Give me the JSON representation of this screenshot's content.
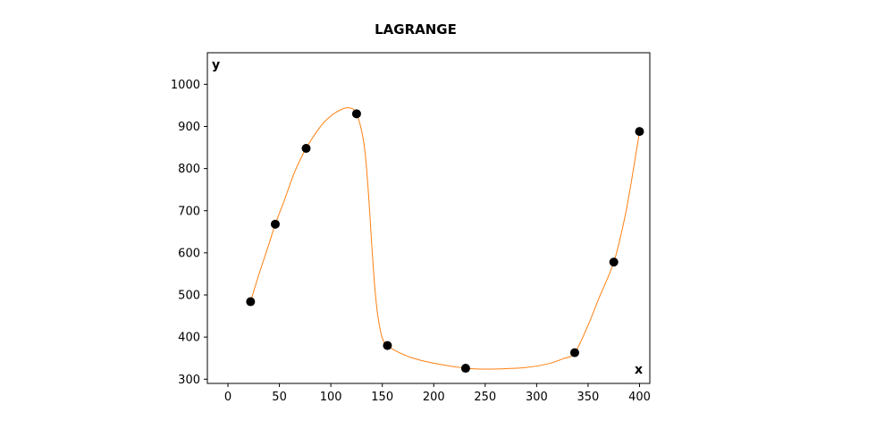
{
  "chart_data": {
    "type": "line",
    "title": "LAGRANGE",
    "xlabel": "x",
    "ylabel": "y",
    "xlim": [
      -20,
      410
    ],
    "ylim": [
      290,
      1075
    ],
    "xticks": [
      0,
      50,
      100,
      150,
      200,
      250,
      300,
      350,
      400
    ],
    "yticks": [
      300,
      400,
      500,
      600,
      700,
      800,
      900,
      1000
    ],
    "grid": false,
    "series": [
      {
        "style": "line",
        "color": "#ff7f0e",
        "x": [
          22,
          30,
          40,
          46,
          55,
          65,
          76,
          90,
          100,
          110,
          118,
          125,
          132,
          136,
          140,
          143,
          146,
          150,
          155,
          165,
          180,
          200,
          231,
          250,
          270,
          290,
          310,
          325,
          337,
          350,
          360,
          375,
          385,
          392,
          400
        ],
        "y": [
          484,
          548,
          622,
          668,
          726,
          793,
          848,
          900,
          925,
          940,
          944,
          930,
          862,
          760,
          610,
          510,
          445,
          398,
          380,
          365,
          350,
          338,
          326,
          324,
          325,
          328,
          336,
          348,
          363,
          428,
          489,
          578,
          676,
          768,
          888
        ]
      },
      {
        "style": "points",
        "color": "#000000",
        "x": [
          22,
          46,
          76,
          125,
          155,
          231,
          337,
          375,
          400
        ],
        "y": [
          484,
          668,
          848,
          930,
          380,
          326,
          363,
          578,
          888
        ]
      }
    ]
  }
}
